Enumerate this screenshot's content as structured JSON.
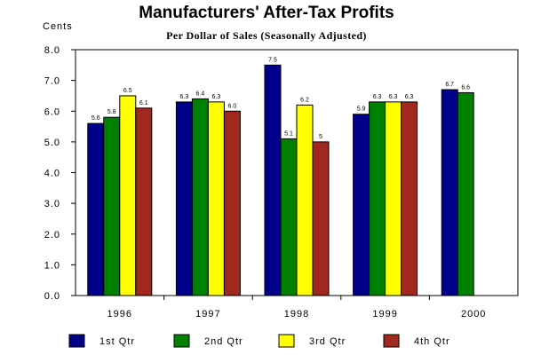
{
  "chart_data": {
    "type": "bar",
    "title": "Manufacturers' After-Tax Profits",
    "subtitle": "Per Dollar of Sales (Seasonally Adjusted)",
    "ylabel": "Cents",
    "xlabel": "",
    "ylim": [
      0,
      8
    ],
    "y_ticks": [
      "0.0",
      "1.0",
      "2.0",
      "3.0",
      "4.0",
      "5.0",
      "6.0",
      "7.0",
      "8.0"
    ],
    "categories": [
      "1996",
      "1997",
      "1998",
      "1999",
      "2000"
    ],
    "series": [
      {
        "name": "1st Qtr",
        "color": "#00008b",
        "values": [
          5.6,
          6.3,
          7.5,
          5.9,
          6.7
        ],
        "labels": [
          "5.6",
          "6.3",
          "7.5",
          "5.9",
          "6.7"
        ]
      },
      {
        "name": "2nd Qtr",
        "color": "#008000",
        "values": [
          5.8,
          6.4,
          5.1,
          6.3,
          6.6
        ],
        "labels": [
          "5.8",
          "6.4",
          "5.1",
          "6.3",
          "6.6"
        ]
      },
      {
        "name": "3rd Qtr",
        "color": "#ffff00",
        "values": [
          6.5,
          6.3,
          6.2,
          6.3,
          null
        ],
        "labels": [
          "6.5",
          "6.3",
          "6.2",
          "6.3",
          ""
        ]
      },
      {
        "name": "4th Qtr",
        "color": "#a0281e",
        "values": [
          6.1,
          6.0,
          5.0,
          6.3,
          null
        ],
        "labels": [
          "6.1",
          "6.0",
          "5",
          "6.3",
          ""
        ]
      }
    ],
    "grid": false,
    "legend_position": "bottom"
  }
}
